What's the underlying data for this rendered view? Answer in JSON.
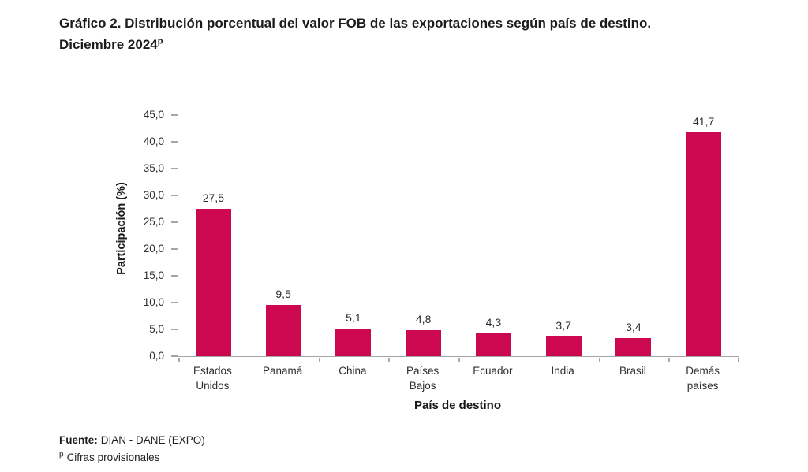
{
  "title": {
    "line1": "Gráfico 2. Distribución porcentual del valor FOB de las exportaciones según país de destino.",
    "line2_text": "Diciembre 2024",
    "line2_superscript": "p"
  },
  "chart_data": {
    "type": "bar",
    "title": "Gráfico 2. Distribución porcentual del valor FOB de las exportaciones según país de destino. Diciembre 2024p",
    "categories": [
      "Estados Unidos",
      "Panamá",
      "China",
      "Países Bajos",
      "Ecuador",
      "India",
      "Brasil",
      "Demás países"
    ],
    "values": [
      27.5,
      9.5,
      5.1,
      4.8,
      4.3,
      3.7,
      3.4,
      41.7
    ],
    "value_labels": [
      "27,5",
      "9,5",
      "5,1",
      "4,8",
      "4,3",
      "3,7",
      "3,4",
      "41,7"
    ],
    "category_display_lines": [
      [
        "Estados",
        "Unidos"
      ],
      [
        "Panamá"
      ],
      [
        "China"
      ],
      [
        "Países",
        "Bajos"
      ],
      [
        "Ecuador"
      ],
      [
        "India"
      ],
      [
        "Brasil"
      ],
      [
        "Demás",
        "países"
      ]
    ],
    "xlabel": "País de destino",
    "ylabel": "Participación (%)",
    "ylim": [
      0,
      45
    ],
    "ytick_step": 5,
    "ytick_labels": [
      "0,0",
      "5,0",
      "10,0",
      "15,0",
      "20,0",
      "25,0",
      "30,0",
      "35,0",
      "40,0",
      "45,0"
    ],
    "grid": false,
    "legend": "none",
    "bar_color": "#CB0850",
    "axis_color": "#A6A6A6",
    "text_color": "#2E2E2E"
  },
  "footer": {
    "source_label": "Fuente:",
    "source_text": "DIAN - DANE (EXPO)",
    "note_superscript": "p",
    "note_text": "Cifras provisionales"
  }
}
